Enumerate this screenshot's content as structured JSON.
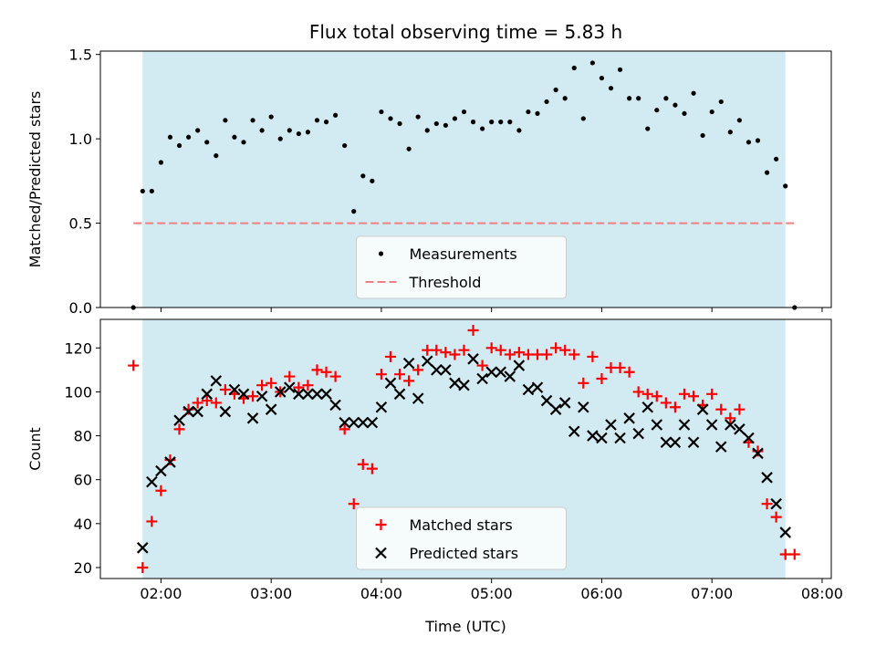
{
  "chart_data": [
    {
      "type": "scatter",
      "title": "Flux total observing time = 5.83 h",
      "xlabel": "",
      "ylabel": "Matched/Predicted stars",
      "xlim": [
        "01:27",
        "08:05"
      ],
      "ylim": [
        0,
        1.52
      ],
      "x_ticks": [
        "02:00",
        "03:00",
        "04:00",
        "05:00",
        "06:00",
        "07:00",
        "08:00"
      ],
      "x_ticklabels_shown": false,
      "y_ticks": [
        0.0,
        0.5,
        1.0,
        1.5
      ],
      "y_ticklabels": [
        "0.0",
        "0.5",
        "1.0",
        "1.5"
      ],
      "shaded_interval": {
        "start": "01:50",
        "end": "07:40",
        "color": "#add8e6"
      },
      "legend": {
        "placement": "lower-center",
        "entries": [
          {
            "label": "Measurements",
            "marker": "dot",
            "color": "#000000"
          },
          {
            "label": "Threshold",
            "marker": "dashed-line",
            "color": "#f08080"
          }
        ]
      },
      "threshold": {
        "value": 0.5,
        "x_start": "01:45",
        "x_end": "07:45",
        "color": "#f08080"
      },
      "series": [
        {
          "name": "Measurements",
          "color": "#000000",
          "x": [
            "01:45",
            "01:50",
            "01:55",
            "02:00",
            "02:05",
            "02:10",
            "02:15",
            "02:20",
            "02:25",
            "02:30",
            "02:35",
            "02:40",
            "02:45",
            "02:50",
            "02:55",
            "03:00",
            "03:05",
            "03:10",
            "03:15",
            "03:20",
            "03:25",
            "03:30",
            "03:35",
            "03:40",
            "03:45",
            "03:50",
            "03:55",
            "04:00",
            "04:05",
            "04:10",
            "04:15",
            "04:20",
            "04:25",
            "04:30",
            "04:35",
            "04:40",
            "04:45",
            "04:50",
            "04:55",
            "05:00",
            "05:05",
            "05:10",
            "05:15",
            "05:20",
            "05:25",
            "05:30",
            "05:35",
            "05:40",
            "05:45",
            "05:50",
            "05:55",
            "06:00",
            "06:05",
            "06:10",
            "06:15",
            "06:20",
            "06:25",
            "06:30",
            "06:35",
            "06:40",
            "06:45",
            "06:50",
            "06:55",
            "07:00",
            "07:05",
            "07:10",
            "07:15",
            "07:20",
            "07:25",
            "07:30",
            "07:35",
            "07:40",
            "07:45"
          ],
          "y": [
            0.0,
            0.69,
            0.69,
            0.86,
            1.01,
            0.96,
            1.01,
            1.05,
            0.98,
            0.9,
            1.11,
            1.01,
            0.98,
            1.11,
            1.05,
            1.13,
            1.0,
            1.05,
            1.03,
            1.04,
            1.11,
            1.1,
            1.14,
            0.96,
            0.57,
            0.78,
            0.75,
            1.16,
            1.12,
            1.09,
            0.94,
            1.13,
            1.05,
            1.09,
            1.08,
            1.12,
            1.16,
            1.1,
            1.06,
            1.1,
            1.1,
            1.1,
            1.05,
            1.16,
            1.15,
            1.22,
            1.29,
            1.24,
            1.42,
            1.12,
            1.45,
            1.36,
            1.3,
            1.41,
            1.24,
            1.24,
            1.06,
            1.17,
            1.24,
            1.2,
            1.15,
            1.27,
            1.02,
            1.16,
            1.22,
            1.04,
            1.11,
            0.98,
            0.99,
            0.8,
            0.88,
            0.72,
            0.0
          ]
        }
      ]
    },
    {
      "type": "scatter",
      "title": "",
      "xlabel": "Time (UTC)",
      "ylabel": "Count",
      "xlim": [
        "01:27",
        "08:05"
      ],
      "ylim": [
        15,
        133
      ],
      "x_ticks": [
        "02:00",
        "03:00",
        "04:00",
        "05:00",
        "06:00",
        "07:00",
        "08:00"
      ],
      "x_ticklabels": [
        "02:00",
        "03:00",
        "04:00",
        "05:00",
        "06:00",
        "07:00",
        "08:00"
      ],
      "y_ticks": [
        20,
        40,
        60,
        80,
        100,
        120
      ],
      "y_ticklabels": [
        "20",
        "40",
        "60",
        "80",
        "100",
        "120"
      ],
      "shaded_interval": {
        "start": "01:50",
        "end": "07:40",
        "color": "#add8e6"
      },
      "legend": {
        "placement": "lower-center",
        "entries": [
          {
            "label": "Matched stars",
            "marker": "plus",
            "color": "#ff0000"
          },
          {
            "label": "Predicted stars",
            "marker": "x",
            "color": "#000000"
          }
        ]
      },
      "series": [
        {
          "name": "Matched stars",
          "marker": "plus",
          "color": "#ff0000",
          "x": [
            "01:45",
            "01:50",
            "01:55",
            "02:00",
            "02:05",
            "02:10",
            "02:15",
            "02:20",
            "02:25",
            "02:30",
            "02:35",
            "02:40",
            "02:45",
            "02:50",
            "02:55",
            "03:00",
            "03:05",
            "03:10",
            "03:15",
            "03:20",
            "03:25",
            "03:30",
            "03:35",
            "03:40",
            "03:45",
            "03:50",
            "03:55",
            "04:00",
            "04:05",
            "04:10",
            "04:15",
            "04:20",
            "04:25",
            "04:30",
            "04:35",
            "04:40",
            "04:45",
            "04:50",
            "04:55",
            "05:00",
            "05:05",
            "05:10",
            "05:15",
            "05:20",
            "05:25",
            "05:30",
            "05:35",
            "05:40",
            "05:45",
            "05:50",
            "05:55",
            "06:00",
            "06:05",
            "06:10",
            "06:15",
            "06:20",
            "06:25",
            "06:30",
            "06:35",
            "06:40",
            "06:45",
            "06:50",
            "06:55",
            "07:00",
            "07:05",
            "07:10",
            "07:15",
            "07:20",
            "07:25",
            "07:30",
            "07:35",
            "07:40",
            "07:45"
          ],
          "y": [
            112,
            20,
            41,
            55,
            69,
            83,
            92,
            95,
            96,
            95,
            101,
            99,
            97,
            98,
            103,
            104,
            100,
            107,
            102,
            103,
            110,
            109,
            107,
            83,
            49,
            67,
            65,
            108,
            116,
            108,
            105,
            110,
            119,
            119,
            118,
            117,
            119,
            128,
            112,
            120,
            119,
            117,
            118,
            117,
            117,
            117,
            120,
            119,
            117,
            104,
            116,
            106,
            111,
            111,
            109,
            100,
            99,
            98,
            95,
            93,
            99,
            98,
            94,
            99,
            92,
            88,
            92,
            77,
            73,
            49,
            43,
            26,
            26
          ]
        },
        {
          "name": "Predicted stars",
          "marker": "x",
          "color": "#000000",
          "x": [
            "01:50",
            "01:55",
            "02:00",
            "02:05",
            "02:10",
            "02:15",
            "02:20",
            "02:25",
            "02:30",
            "02:35",
            "02:40",
            "02:45",
            "02:50",
            "02:55",
            "03:00",
            "03:05",
            "03:10",
            "03:15",
            "03:20",
            "03:25",
            "03:30",
            "03:35",
            "03:40",
            "03:45",
            "03:50",
            "03:55",
            "04:00",
            "04:05",
            "04:10",
            "04:15",
            "04:20",
            "04:25",
            "04:30",
            "04:35",
            "04:40",
            "04:45",
            "04:50",
            "04:55",
            "05:00",
            "05:05",
            "05:10",
            "05:15",
            "05:20",
            "05:25",
            "05:30",
            "05:35",
            "05:40",
            "05:45",
            "05:50",
            "05:55",
            "06:00",
            "06:05",
            "06:10",
            "06:15",
            "06:20",
            "06:25",
            "06:30",
            "06:35",
            "06:40",
            "06:45",
            "06:50",
            "06:55",
            "07:00",
            "07:05",
            "07:10",
            "07:15",
            "07:20",
            "07:25",
            "07:30",
            "07:35",
            "07:40"
          ],
          "y": [
            29,
            59,
            64,
            68,
            87,
            91,
            91,
            99,
            105,
            91,
            101,
            99,
            88,
            98,
            92,
            100,
            102,
            99,
            99,
            99,
            99,
            94,
            86,
            86,
            86,
            86,
            93,
            104,
            99,
            113,
            97,
            114,
            110,
            110,
            104,
            103,
            115,
            106,
            109,
            109,
            107,
            112,
            101,
            102,
            96,
            92,
            95,
            82,
            93,
            80,
            79,
            85,
            79,
            88,
            81,
            93,
            85,
            77,
            77,
            85,
            77,
            92,
            85,
            75,
            85,
            83,
            79,
            72,
            61,
            49,
            36
          ]
        }
      ]
    }
  ]
}
